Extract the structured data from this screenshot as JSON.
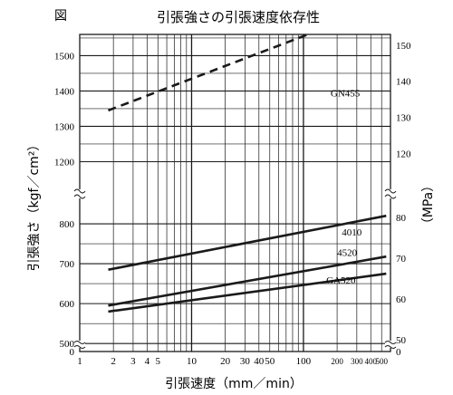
{
  "figure_label": "図",
  "chart_data": {
    "type": "line",
    "title": "引張強さの引張速度依存性",
    "xlabel": "引張速度（mm／min）",
    "ylabel": "引張強さ（kgf／cm²）",
    "y2label": "（MPa）",
    "xscale": "log",
    "xlim": [
      1,
      600
    ],
    "ylim": [
      480,
      1560
    ],
    "y_axis_break": [
      850,
      1150
    ],
    "y2lim": [
      47,
      153
    ],
    "grid": true,
    "x_ticks": [
      "1",
      "2",
      "3",
      "4",
      "5",
      "10",
      "20",
      "30",
      "40",
      "50",
      "100",
      "200",
      "300",
      "400",
      "500"
    ],
    "y_ticks": [
      "500",
      "600",
      "700",
      "800",
      "1200",
      "1300",
      "1400",
      "1500"
    ],
    "y2_ticks": [
      "50",
      "60",
      "70",
      "80",
      "120",
      "130",
      "140",
      "150"
    ],
    "origin_labels": {
      "y": "0",
      "y2": "0"
    },
    "series": [
      {
        "name": "GN455",
        "style": "dashed",
        "x": [
          1.8,
          110
        ],
        "y": [
          1345,
          1560
        ]
      },
      {
        "name": "4010",
        "style": "solid",
        "x": [
          1.8,
          550
        ],
        "y": [
          685,
          820
        ]
      },
      {
        "name": "4520",
        "style": "solid",
        "x": [
          1.8,
          550
        ],
        "y": [
          595,
          718
        ]
      },
      {
        "name": "GA520",
        "style": "solid",
        "x": [
          1.8,
          550
        ],
        "y": [
          580,
          675
        ]
      }
    ]
  }
}
